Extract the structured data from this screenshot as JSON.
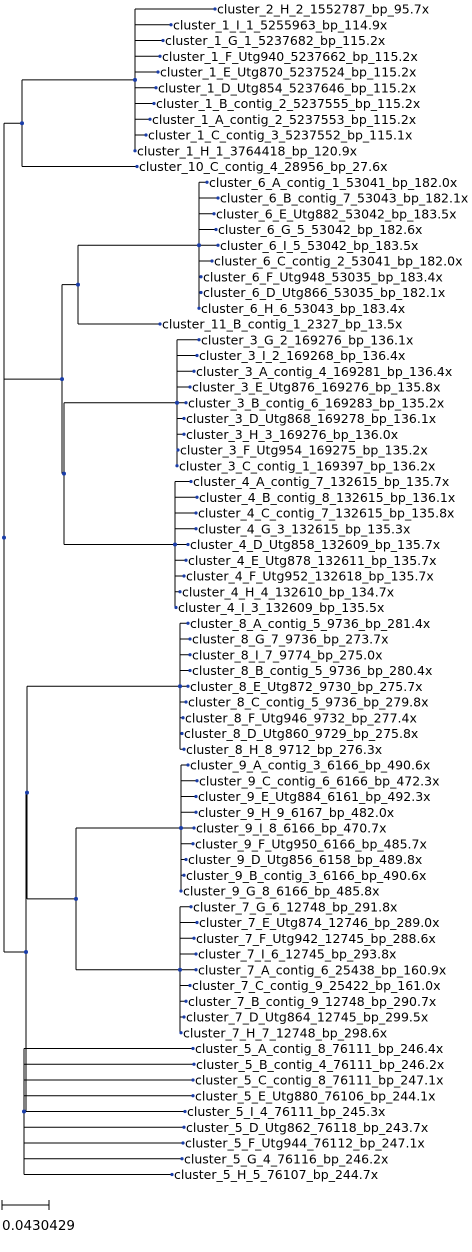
{
  "colors": {
    "branch": "#000000",
    "node": "#1a3da8",
    "label": "#000000"
  },
  "scale_bar": {
    "label": "0.0430429"
  },
  "tree": {
    "children": [
      {
        "children": [
          {
            "children": [
              {
                "label": "cluster_2_H_2_1552787_bp_95.7x"
              },
              {
                "label": "cluster_1_I_1_5255963_bp_114.9x"
              },
              {
                "label": "cluster_1_G_1_5237682_bp_115.2x"
              },
              {
                "label": "cluster_1_F_Utg940_5237662_bp_115.2x"
              },
              {
                "label": "cluster_1_E_Utg870_5237524_bp_115.2x"
              },
              {
                "label": "cluster_1_D_Utg854_5237646_bp_115.2x"
              },
              {
                "label": "cluster_1_B_contig_2_5237555_bp_115.2x"
              },
              {
                "label": "cluster_1_A_contig_2_5237553_bp_115.2x"
              },
              {
                "label": "cluster_1_C_contig_3_5237552_bp_115.1x"
              },
              {
                "label": "cluster_1_H_1_3764418_bp_120.9x"
              }
            ]
          },
          {
            "label": "cluster_10_C_contig_4_28956_bp_27.6x"
          }
        ]
      },
      {
        "children": [
          {
            "children": [
              {
                "children": [
                  {
                    "label": "cluster_6_A_contig_1_53041_bp_182.0x"
                  },
                  {
                    "label": "cluster_6_B_contig_7_53043_bp_182.1x"
                  },
                  {
                    "label": "cluster_6_E_Utg882_53042_bp_183.5x"
                  },
                  {
                    "label": "cluster_6_G_5_53042_bp_182.6x"
                  },
                  {
                    "label": "cluster_6_I_5_53042_bp_183.5x"
                  },
                  {
                    "label": "cluster_6_C_contig_2_53041_bp_182.0x"
                  },
                  {
                    "label": "cluster_6_F_Utg948_53035_bp_183.4x"
                  },
                  {
                    "label": "cluster_6_D_Utg866_53035_bp_182.1x"
                  },
                  {
                    "label": "cluster_6_H_6_53043_bp_183.4x"
                  }
                ]
              },
              {
                "label": "cluster_11_B_contig_1_2327_bp_13.5x"
              }
            ]
          },
          {
            "children": [
              {
                "children": [
                  {
                    "label": "cluster_3_G_2_169276_bp_136.1x"
                  },
                  {
                    "label": "cluster_3_I_2_169268_bp_136.4x"
                  },
                  {
                    "label": "cluster_3_A_contig_4_169281_bp_136.4x"
                  },
                  {
                    "label": "cluster_3_E_Utg876_169276_bp_135.8x"
                  },
                  {
                    "label": "cluster_3_B_contig_6_169283_bp_135.2x"
                  },
                  {
                    "label": "cluster_3_D_Utg868_169278_bp_136.1x"
                  },
                  {
                    "label": "cluster_3_H_3_169276_bp_136.0x"
                  },
                  {
                    "label": "cluster_3_F_Utg954_169275_bp_135.2x"
                  },
                  {
                    "label": "cluster_3_C_contig_1_169397_bp_136.2x"
                  }
                ]
              },
              {
                "children": [
                  {
                    "label": "cluster_4_A_contig_7_132615_bp_135.7x"
                  },
                  {
                    "label": "cluster_4_B_contig_8_132615_bp_136.1x"
                  },
                  {
                    "label": "cluster_4_C_contig_7_132615_bp_135.8x"
                  },
                  {
                    "label": "cluster_4_G_3_132615_bp_135.3x"
                  },
                  {
                    "label": "cluster_4_D_Utg858_132609_bp_135.7x"
                  },
                  {
                    "label": "cluster_4_E_Utg878_132611_bp_135.7x"
                  },
                  {
                    "label": "cluster_4_F_Utg952_132618_bp_135.7x"
                  },
                  {
                    "label": "cluster_4_H_4_132610_bp_134.7x"
                  },
                  {
                    "label": "cluster_4_I_3_132609_bp_135.5x"
                  }
                ]
              }
            ]
          }
        ]
      },
      {
        "children": [
          {
            "children": [
              {
                "children": [
                  {
                    "label": "cluster_8_A_contig_5_9736_bp_281.4x"
                  },
                  {
                    "label": "cluster_8_G_7_9736_bp_273.7x"
                  },
                  {
                    "label": "cluster_8_I_7_9774_bp_275.0x"
                  },
                  {
                    "label": "cluster_8_B_contig_5_9736_bp_280.4x"
                  },
                  {
                    "label": "cluster_8_E_Utg872_9730_bp_275.7x"
                  },
                  {
                    "label": "cluster_8_C_contig_5_9736_bp_279.8x"
                  },
                  {
                    "label": "cluster_8_F_Utg946_9732_bp_277.4x"
                  },
                  {
                    "label": "cluster_8_D_Utg860_9729_bp_275.8x"
                  },
                  {
                    "label": "cluster_8_H_8_9712_bp_276.3x"
                  }
                ]
              },
              {
                "children": [
                  {
                    "children": [
                      {
                        "label": "cluster_9_A_contig_3_6166_bp_490.6x"
                      },
                      {
                        "label": "cluster_9_C_contig_6_6166_bp_472.3x"
                      },
                      {
                        "label": "cluster_9_E_Utg884_6161_bp_492.3x"
                      },
                      {
                        "label": "cluster_9_H_9_6167_bp_482.0x"
                      },
                      {
                        "label": "cluster_9_I_8_6166_bp_470.7x"
                      },
                      {
                        "label": "cluster_9_F_Utg950_6166_bp_485.7x"
                      },
                      {
                        "label": "cluster_9_D_Utg856_6158_bp_489.8x"
                      },
                      {
                        "label": "cluster_9_B_contig_3_6166_bp_490.6x"
                      },
                      {
                        "label": "cluster_9_G_8_6166_bp_485.8x"
                      }
                    ]
                  },
                  {
                    "children": [
                      {
                        "label": "cluster_7_G_6_12748_bp_291.8x"
                      },
                      {
                        "label": "cluster_7_E_Utg874_12746_bp_289.0x"
                      },
                      {
                        "label": "cluster_7_F_Utg942_12745_bp_288.6x"
                      },
                      {
                        "label": "cluster_7_I_6_12745_bp_293.8x"
                      },
                      {
                        "label": "cluster_7_A_contig_6_25438_bp_160.9x"
                      },
                      {
                        "label": "cluster_7_C_contig_9_25422_bp_161.0x"
                      },
                      {
                        "label": "cluster_7_B_contig_9_12748_bp_290.7x"
                      },
                      {
                        "label": "cluster_7_D_Utg864_12745_bp_299.5x"
                      },
                      {
                        "label": "cluster_7_H_7_12748_bp_298.6x"
                      }
                    ]
                  }
                ]
              }
            ]
          },
          {
            "children": [
              {
                "label": "cluster_5_A_contig_8_76111_bp_246.4x"
              },
              {
                "label": "cluster_5_B_contig_4_76111_bp_246.2x"
              },
              {
                "label": "cluster_5_C_contig_8_76111_bp_247.1x"
              },
              {
                "label": "cluster_5_E_Utg880_76106_bp_244.1x"
              },
              {
                "label": "cluster_5_I_4_76111_bp_245.3x"
              },
              {
                "label": "cluster_5_D_Utg862_76118_bp_243.7x"
              },
              {
                "label": "cluster_5_F_Utg944_76112_bp_247.1x"
              },
              {
                "label": "cluster_5_G_4_76116_bp_246.2x"
              },
              {
                "label": "cluster_5_H_5_76107_bp_244.7x"
              }
            ]
          }
        ]
      }
    ]
  }
}
